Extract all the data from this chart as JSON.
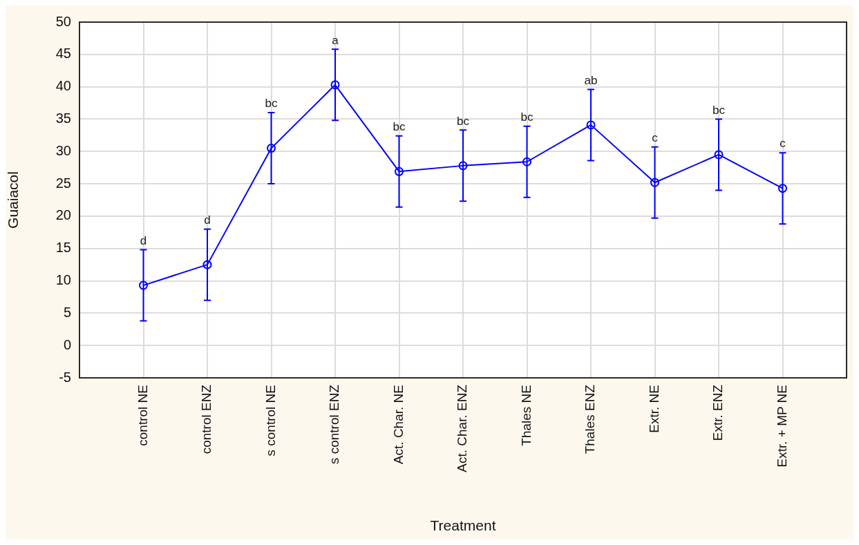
{
  "chart_data": {
    "type": "line",
    "xlabel": "Treatment",
    "ylabel": "Guaiacol",
    "categories": [
      "control NE",
      "control ENZ",
      "s control NE",
      "s control ENZ",
      "Act. Char. NE",
      "Act. Char. ENZ",
      "Thales NE",
      "Thales ENZ",
      "Extr. NE",
      "Extr. ENZ",
      "Extr. + MP NE"
    ],
    "values": [
      9.3,
      12.5,
      30.5,
      40.3,
      26.9,
      27.8,
      28.4,
      34.1,
      25.2,
      29.5,
      24.3
    ],
    "errors": [
      5.5,
      5.5,
      5.5,
      5.5,
      5.5,
      5.5,
      5.5,
      5.5,
      5.5,
      5.5,
      5.5
    ],
    "color": "#0000ff",
    "marker": "circle",
    "line_style": "solid",
    "ylim": [
      -5,
      50
    ],
    "yticks": [
      -5,
      0,
      5,
      10,
      15,
      20,
      25,
      30,
      35,
      40,
      45,
      50
    ],
    "grid": true,
    "annotations": [
      {
        "text": "d",
        "x": "control NE",
        "y": 14.8
      },
      {
        "text": "d",
        "x": "control ENZ",
        "y": 18.0
      },
      {
        "text": "bc",
        "x": "s control NE",
        "y": 36.0
      },
      {
        "text": "a",
        "x": "s control ENZ",
        "y": 45.8
      },
      {
        "text": "bc",
        "x": "Act. Char. NE",
        "y": 32.4
      },
      {
        "text": "bc",
        "x": "Act. Char. ENZ",
        "y": 33.3
      },
      {
        "text": "bc",
        "x": "Thales NE",
        "y": 33.9
      },
      {
        "text": "ab",
        "x": "Thales ENZ",
        "y": 39.6
      },
      {
        "text": "c",
        "x": "Extr. NE",
        "y": 30.7
      },
      {
        "text": "bc",
        "x": "Extr. ENZ",
        "y": 35.0
      },
      {
        "text": "c",
        "x": "Extr. + MP NE",
        "y": 29.8
      }
    ]
  }
}
